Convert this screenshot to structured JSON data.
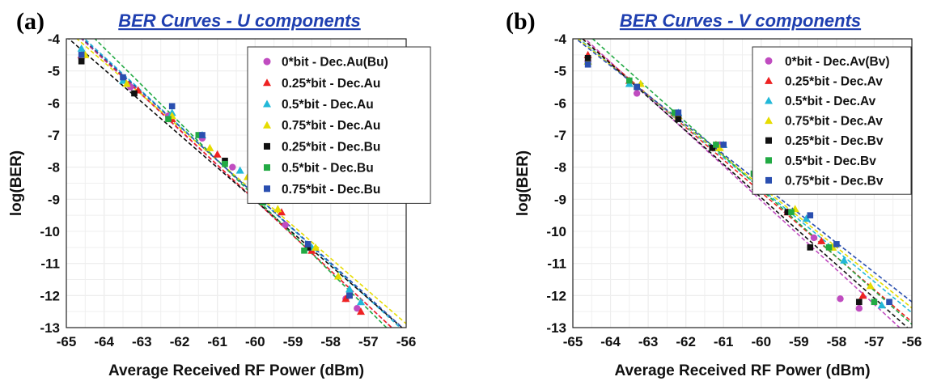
{
  "chart_data": [
    {
      "panel": "(a)",
      "type": "line",
      "title": "BER Curves - U components",
      "xlabel": "Average Received RF Power (dBm)",
      "ylabel": "log(BER)",
      "xlim": [
        -65,
        -56
      ],
      "ylim": [
        -13,
        -4
      ],
      "xticks": [
        -65,
        -64,
        -63,
        -62,
        -61,
        -60,
        -59,
        -58,
        -57,
        -56
      ],
      "yticks": [
        -4,
        -5,
        -6,
        -7,
        -8,
        -9,
        -10,
        -11,
        -12,
        -13
      ],
      "grid": true,
      "legend_position": "top-right",
      "series": [
        {
          "name": "0*bit - Dec.Au(Bu)",
          "color": "#c04cc0",
          "marker": "circle",
          "x": [
            -64.6,
            -63.3,
            -62.3,
            -61.4,
            -60.6,
            -60.0,
            -59.2,
            -58.6,
            -57.6,
            -57.3
          ],
          "y": [
            -4.6,
            -5.5,
            -6.4,
            -7.1,
            -8.0,
            -8.6,
            -9.8,
            -10.5,
            -12.1,
            -12.4
          ]
        },
        {
          "name": "0.25*bit - Dec.Au",
          "color": "#ee2222",
          "marker": "triangle",
          "x": [
            -64.6,
            -63.1,
            -62.2,
            -61.0,
            -60.0,
            -59.3,
            -58.5,
            -57.6,
            -57.2
          ],
          "y": [
            -4.5,
            -5.6,
            -6.5,
            -7.6,
            -8.6,
            -9.4,
            -10.6,
            -12.1,
            -12.5
          ]
        },
        {
          "name": "0.5*bit - Dec.Au",
          "color": "#22b8d8",
          "marker": "triangle",
          "x": [
            -64.6,
            -63.5,
            -62.2,
            -61.4,
            -60.4,
            -59.7,
            -58.5,
            -57.5,
            -57.2
          ],
          "y": [
            -4.3,
            -5.3,
            -6.3,
            -7.0,
            -8.1,
            -8.9,
            -10.5,
            -11.8,
            -12.2
          ]
        },
        {
          "name": "0.75*bit - Dec.Au",
          "color": "#e6dc00",
          "marker": "triangle",
          "x": [
            -64.5,
            -63.4,
            -62.2,
            -61.2,
            -60.2,
            -59.4,
            -58.4,
            -57.8
          ],
          "y": [
            -4.5,
            -5.4,
            -6.4,
            -7.4,
            -8.3,
            -9.3,
            -10.5,
            -11.4
          ]
        },
        {
          "name": "0.25*bit - Dec.Bu",
          "color": "#111111",
          "marker": "square",
          "x": [
            -64.6,
            -63.2,
            -60.8,
            -60.0,
            -58.6,
            -57.5
          ],
          "y": [
            -4.7,
            -5.7,
            -7.8,
            -8.7,
            -10.5,
            -12.0
          ]
        },
        {
          "name": "0.5*bit - Dec.Bu",
          "color": "#22aa44",
          "marker": "square",
          "x": [
            -62.3,
            -61.5,
            -60.8,
            -59.8,
            -58.7
          ],
          "y": [
            -6.5,
            -7.0,
            -7.9,
            -9.1,
            -10.6
          ]
        },
        {
          "name": "0.75*bit - Dec.Bu",
          "color": "#2a4fb0",
          "marker": "square",
          "x": [
            -64.6,
            -63.5,
            -62.2,
            -61.4,
            -59.9,
            -58.6,
            -57.5
          ],
          "y": [
            -4.5,
            -5.2,
            -6.1,
            -7.0,
            -8.6,
            -10.4,
            -12.0
          ]
        }
      ]
    },
    {
      "panel": "(b)",
      "type": "line",
      "title": "BER Curves - V components",
      "xlabel": "Average Received RF Power (dBm)",
      "ylabel": "log(BER)",
      "xlim": [
        -65,
        -56
      ],
      "ylim": [
        -13,
        -4
      ],
      "xticks": [
        -65,
        -64,
        -63,
        -62,
        -61,
        -60,
        -59,
        -58,
        -57,
        -56
      ],
      "yticks": [
        -4,
        -5,
        -6,
        -7,
        -8,
        -9,
        -10,
        -11,
        -12,
        -13
      ],
      "grid": true,
      "legend_position": "top-right",
      "series": [
        {
          "name": "0*bit - Dec.Av(Bv)",
          "color": "#c04cc0",
          "marker": "circle",
          "x": [
            -64.6,
            -63.3,
            -62.2,
            -61.1,
            -60.0,
            -59.3,
            -58.6,
            -57.9,
            -57.4
          ],
          "y": [
            -4.7,
            -5.7,
            -6.4,
            -7.3,
            -8.4,
            -9.4,
            -10.2,
            -12.1,
            -12.4
          ]
        },
        {
          "name": "0.25*bit - Dec.Av",
          "color": "#ee2222",
          "marker": "triangle",
          "x": [
            -64.6,
            -63.5,
            -62.2,
            -61.2,
            -60.1,
            -59.3,
            -58.4,
            -57.3
          ],
          "y": [
            -4.5,
            -5.3,
            -6.4,
            -7.3,
            -8.4,
            -9.4,
            -10.3,
            -12.0
          ]
        },
        {
          "name": "0.5*bit - Dec.Av",
          "color": "#22b8d8",
          "marker": "triangle",
          "x": [
            -64.6,
            -63.5,
            -62.2,
            -61.0,
            -60.0,
            -58.8,
            -57.8,
            -56.8
          ],
          "y": [
            -4.7,
            -5.4,
            -6.3,
            -7.3,
            -8.3,
            -9.6,
            -10.9,
            -12.3
          ]
        },
        {
          "name": "0.75*bit - Dec.Av",
          "color": "#e6dc00",
          "marker": "triangle",
          "x": [
            -64.6,
            -63.2,
            -62.2,
            -61.1,
            -60.1,
            -59.1,
            -58.1,
            -57.1
          ],
          "y": [
            -4.7,
            -5.4,
            -6.4,
            -7.4,
            -8.2,
            -9.3,
            -10.5,
            -11.7
          ]
        },
        {
          "name": "0.25*bit - Dec.Bv",
          "color": "#111111",
          "marker": "square",
          "x": [
            -64.6,
            -63.3,
            -62.2,
            -61.3,
            -60.0,
            -59.3,
            -58.7,
            -57.4
          ],
          "y": [
            -4.6,
            -5.5,
            -6.5,
            -7.4,
            -8.4,
            -9.4,
            -10.5,
            -12.2
          ]
        },
        {
          "name": "0.5*bit - Dec.Bv",
          "color": "#22aa44",
          "marker": "square",
          "x": [
            -63.5,
            -62.3,
            -61.2,
            -60.2,
            -59.2,
            -58.2,
            -57.0
          ],
          "y": [
            -5.3,
            -6.3,
            -7.3,
            -8.2,
            -9.4,
            -10.5,
            -12.2
          ]
        },
        {
          "name": "0.75*bit - Dec.Bv",
          "color": "#2a4fb0",
          "marker": "square",
          "x": [
            -64.6,
            -63.3,
            -62.2,
            -61.0,
            -60.0,
            -58.7,
            -58.0,
            -56.6
          ],
          "y": [
            -4.8,
            -5.5,
            -6.3,
            -7.3,
            -8.1,
            -9.5,
            -10.4,
            -12.2
          ]
        }
      ]
    }
  ]
}
